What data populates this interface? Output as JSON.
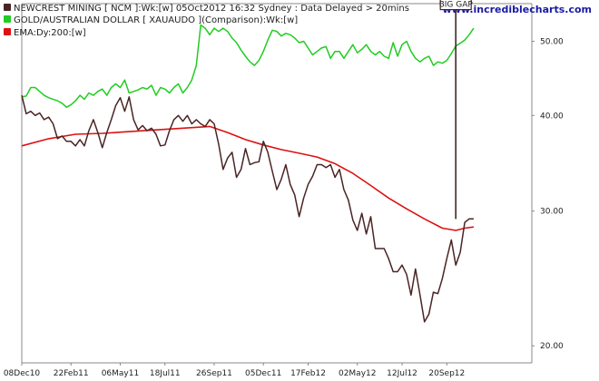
{
  "brand": "www.incrediblecharts.com",
  "legend": [
    {
      "label": "NEWCREST MINING [ NCM ]:Wk:[w]  05Oct2012 16:32  Sydney : Data Delayed > 20mins",
      "color": "#4a2424"
    },
    {
      "label": "GOLD/AUSTRALIAN DOLLAR [ XAUAUDO ](Comparison):Wk:[w]",
      "color": "#22cc22"
    },
    {
      "label": "EMA:Dy:200:[w]",
      "color": "#dd1111"
    }
  ],
  "chart_data": {
    "type": "line",
    "yscale": "log",
    "ylim": [
      19,
      56
    ],
    "xlim": [
      0,
      114
    ],
    "x_ticks": [
      {
        "x": 0,
        "label": "08Dec10"
      },
      {
        "x": 11,
        "label": "22Feb11"
      },
      {
        "x": 22,
        "label": "06May11"
      },
      {
        "x": 32,
        "label": "18Jul11"
      },
      {
        "x": 43,
        "label": "26Sep11"
      },
      {
        "x": 54,
        "label": "05Dec11"
      },
      {
        "x": 64,
        "label": "17Feb12"
      },
      {
        "x": 75,
        "label": "02May12"
      },
      {
        "x": 85,
        "label": "12Jul12"
      },
      {
        "x": 95,
        "label": "20Sep12"
      }
    ],
    "y_ticks": [
      {
        "value": 20,
        "label": "20.00"
      },
      {
        "value": 30,
        "label": "30.00"
      },
      {
        "value": 40,
        "label": "40.00"
      },
      {
        "value": 50,
        "label": "50.00"
      }
    ],
    "annotation": {
      "text": "BIG GAP",
      "x": 97,
      "from": 29.3,
      "to": 55
    }
  },
  "series": [
    {
      "name": "NEWCREST MINING",
      "color": "#4a2424",
      "values": [
        [
          0,
          42.5
        ],
        [
          1,
          40.2
        ],
        [
          2,
          40.5
        ],
        [
          3,
          40.0
        ],
        [
          4,
          40.3
        ],
        [
          5,
          39.5
        ],
        [
          6,
          39.8
        ],
        [
          7,
          39.0
        ],
        [
          8,
          37.3
        ],
        [
          9,
          37.6
        ],
        [
          10,
          37.0
        ],
        [
          11,
          37.0
        ],
        [
          12,
          36.5
        ],
        [
          13,
          37.2
        ],
        [
          14,
          36.5
        ],
        [
          15,
          38.2
        ],
        [
          16,
          39.5
        ],
        [
          17,
          38.0
        ],
        [
          18,
          36.3
        ],
        [
          19,
          38.0
        ],
        [
          20,
          39.5
        ],
        [
          21,
          41.2
        ],
        [
          22,
          42.2
        ],
        [
          23,
          40.5
        ],
        [
          24,
          42.3
        ],
        [
          25,
          39.5
        ],
        [
          26,
          38.3
        ],
        [
          27,
          38.8
        ],
        [
          28,
          38.2
        ],
        [
          29,
          38.5
        ],
        [
          30,
          37.8
        ],
        [
          31,
          36.5
        ],
        [
          32,
          36.6
        ],
        [
          33,
          38.2
        ],
        [
          34,
          39.5
        ],
        [
          35,
          40.0
        ],
        [
          36,
          39.3
        ],
        [
          37,
          40.0
        ],
        [
          38,
          39.0
        ],
        [
          39,
          39.5
        ],
        [
          40,
          39.0
        ],
        [
          41,
          38.7
        ],
        [
          42,
          39.5
        ],
        [
          43,
          39.0
        ],
        [
          44,
          36.7
        ],
        [
          45,
          34.0
        ],
        [
          46,
          35.2
        ],
        [
          47,
          35.8
        ],
        [
          48,
          33.2
        ],
        [
          49,
          34.0
        ],
        [
          50,
          36.2
        ],
        [
          51,
          34.5
        ],
        [
          52,
          34.7
        ],
        [
          53,
          34.8
        ],
        [
          54,
          37.0
        ],
        [
          55,
          35.8
        ],
        [
          56,
          33.8
        ],
        [
          57,
          32.0
        ],
        [
          58,
          33.0
        ],
        [
          59,
          34.5
        ],
        [
          60,
          32.5
        ],
        [
          61,
          31.5
        ],
        [
          62,
          29.5
        ],
        [
          63,
          31.2
        ],
        [
          64,
          32.5
        ],
        [
          65,
          33.3
        ],
        [
          66,
          34.5
        ],
        [
          67,
          34.5
        ],
        [
          68,
          34.2
        ],
        [
          69,
          34.5
        ],
        [
          70,
          33.2
        ],
        [
          71,
          34.0
        ],
        [
          72,
          32.0
        ],
        [
          73,
          31.0
        ],
        [
          74,
          29.2
        ],
        [
          75,
          28.3
        ],
        [
          76,
          29.8
        ],
        [
          77,
          28.0
        ],
        [
          78,
          29.5
        ],
        [
          79,
          26.8
        ],
        [
          80,
          26.8
        ],
        [
          81,
          26.8
        ],
        [
          82,
          26.0
        ],
        [
          83,
          25.0
        ],
        [
          84,
          25.0
        ],
        [
          85,
          25.5
        ],
        [
          86,
          24.8
        ],
        [
          87,
          23.3
        ],
        [
          88,
          25.2
        ],
        [
          89,
          23.3
        ],
        [
          90,
          21.5
        ],
        [
          91,
          22.0
        ],
        [
          92,
          23.5
        ],
        [
          93,
          23.4
        ],
        [
          94,
          24.5
        ],
        [
          95,
          26.0
        ],
        [
          96,
          27.5
        ],
        [
          97,
          25.5
        ],
        [
          98,
          26.5
        ],
        [
          99,
          29.0
        ],
        [
          100,
          29.3
        ],
        [
          101,
          29.3
        ]
      ]
    },
    {
      "name": "GOLD/AUSTRALIAN DOLLAR",
      "color": "#22cc22",
      "values": [
        [
          0,
          42.3
        ],
        [
          1,
          42.4
        ],
        [
          2,
          43.5
        ],
        [
          3,
          43.5
        ],
        [
          4,
          43.0
        ],
        [
          5,
          42.5
        ],
        [
          6,
          42.2
        ],
        [
          7,
          42.0
        ],
        [
          8,
          41.8
        ],
        [
          9,
          41.5
        ],
        [
          10,
          41.0
        ],
        [
          11,
          41.3
        ],
        [
          12,
          41.8
        ],
        [
          13,
          42.5
        ],
        [
          14,
          42.0
        ],
        [
          15,
          42.8
        ],
        [
          16,
          42.5
        ],
        [
          17,
          43.0
        ],
        [
          18,
          43.3
        ],
        [
          19,
          42.5
        ],
        [
          20,
          43.5
        ],
        [
          21,
          44.0
        ],
        [
          22,
          43.5
        ],
        [
          23,
          44.5
        ],
        [
          24,
          42.8
        ],
        [
          25,
          43.0
        ],
        [
          26,
          43.2
        ],
        [
          27,
          43.5
        ],
        [
          28,
          43.3
        ],
        [
          29,
          43.8
        ],
        [
          30,
          42.5
        ],
        [
          31,
          43.5
        ],
        [
          32,
          43.3
        ],
        [
          33,
          42.8
        ],
        [
          34,
          43.5
        ],
        [
          35,
          44.0
        ],
        [
          36,
          42.8
        ],
        [
          37,
          43.5
        ],
        [
          38,
          44.5
        ],
        [
          39,
          46.5
        ],
        [
          40,
          52.5
        ],
        [
          41,
          52.0
        ],
        [
          42,
          51.0
        ],
        [
          43,
          52.0
        ],
        [
          44,
          51.5
        ],
        [
          45,
          52.0
        ],
        [
          46,
          51.5
        ],
        [
          47,
          50.5
        ],
        [
          48,
          49.8
        ],
        [
          49,
          48.7
        ],
        [
          50,
          47.8
        ],
        [
          51,
          47.0
        ],
        [
          52,
          46.5
        ],
        [
          53,
          47.2
        ],
        [
          54,
          48.5
        ],
        [
          55,
          50.2
        ],
        [
          56,
          51.7
        ],
        [
          57,
          51.5
        ],
        [
          58,
          50.8
        ],
        [
          59,
          51.2
        ],
        [
          60,
          51.0
        ],
        [
          61,
          50.5
        ],
        [
          62,
          49.8
        ],
        [
          63,
          50.0
        ],
        [
          64,
          49.0
        ],
        [
          65,
          48.0
        ],
        [
          66,
          48.5
        ],
        [
          67,
          49.0
        ],
        [
          68,
          49.2
        ],
        [
          69,
          47.5
        ],
        [
          70,
          48.5
        ],
        [
          71,
          48.5
        ],
        [
          72,
          47.5
        ],
        [
          73,
          48.5
        ],
        [
          74,
          49.5
        ],
        [
          75,
          48.3
        ],
        [
          76,
          48.8
        ],
        [
          77,
          49.5
        ],
        [
          78,
          48.5
        ],
        [
          79,
          48.0
        ],
        [
          80,
          48.5
        ],
        [
          81,
          47.8
        ],
        [
          82,
          47.5
        ],
        [
          83,
          49.8
        ],
        [
          84,
          47.8
        ],
        [
          85,
          49.5
        ],
        [
          86,
          50.0
        ],
        [
          87,
          48.5
        ],
        [
          88,
          47.5
        ],
        [
          89,
          47.0
        ],
        [
          90,
          47.5
        ],
        [
          91,
          47.8
        ],
        [
          92,
          46.5
        ],
        [
          93,
          47.0
        ],
        [
          94,
          46.8
        ],
        [
          95,
          47.2
        ],
        [
          96,
          48.2
        ],
        [
          97,
          49.3
        ],
        [
          98,
          49.7
        ],
        [
          99,
          50.2
        ],
        [
          100,
          51.0
        ],
        [
          101,
          52.0
        ]
      ]
    },
    {
      "name": "EMA:Dy:200",
      "color": "#dd1111",
      "values": [
        [
          0,
          36.5
        ],
        [
          6,
          37.3
        ],
        [
          12,
          37.8
        ],
        [
          18,
          37.9
        ],
        [
          24,
          38.1
        ],
        [
          30,
          38.3
        ],
        [
          36,
          38.5
        ],
        [
          42,
          38.7
        ],
        [
          46,
          38.0
        ],
        [
          50,
          37.2
        ],
        [
          54,
          36.6
        ],
        [
          58,
          36.1
        ],
        [
          62,
          35.7
        ],
        [
          66,
          35.3
        ],
        [
          70,
          34.6
        ],
        [
          74,
          33.6
        ],
        [
          78,
          32.4
        ],
        [
          82,
          31.2
        ],
        [
          86,
          30.2
        ],
        [
          90,
          29.3
        ],
        [
          94,
          28.5
        ],
        [
          97,
          28.3
        ],
        [
          99,
          28.5
        ],
        [
          101,
          28.6
        ]
      ]
    }
  ]
}
